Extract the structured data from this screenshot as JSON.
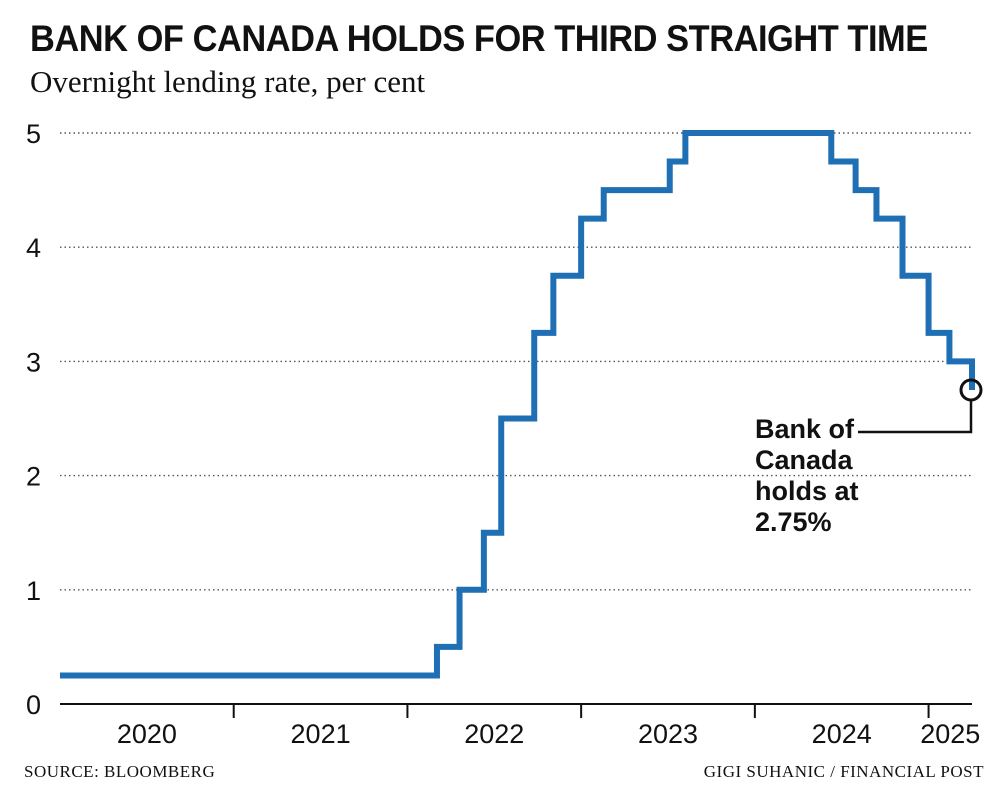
{
  "chart_data": {
    "type": "line",
    "step": true,
    "title": "BANK OF CANADA HOLDS FOR THIRD STRAIGHT TIME",
    "subtitle": "Overnight lending rate, per cent",
    "xlabel": "",
    "ylabel": "",
    "ylim": [
      0,
      5
    ],
    "xlim": [
      2020.0,
      2025.25
    ],
    "y_ticks": [
      "0",
      "1",
      "2",
      "3",
      "4",
      "5"
    ],
    "x_ticks": [
      "2020",
      "2021",
      "2022",
      "2023",
      "2024",
      "2025"
    ],
    "grid": true,
    "series": [
      {
        "name": "Overnight lending rate",
        "color": "#1f6fb5",
        "points": [
          {
            "x": 2020.0,
            "y": 0.25
          },
          {
            "x": 2022.17,
            "y": 0.5
          },
          {
            "x": 2022.3,
            "y": 1.0
          },
          {
            "x": 2022.44,
            "y": 1.5
          },
          {
            "x": 2022.54,
            "y": 2.5
          },
          {
            "x": 2022.73,
            "y": 3.25
          },
          {
            "x": 2022.84,
            "y": 3.75
          },
          {
            "x": 2023.0,
            "y": 4.25
          },
          {
            "x": 2023.13,
            "y": 4.5
          },
          {
            "x": 2023.51,
            "y": 4.75
          },
          {
            "x": 2023.6,
            "y": 5.0
          },
          {
            "x": 2024.44,
            "y": 4.75
          },
          {
            "x": 2024.58,
            "y": 4.5
          },
          {
            "x": 2024.7,
            "y": 4.25
          },
          {
            "x": 2024.85,
            "y": 3.75
          },
          {
            "x": 2025.0,
            "y": 3.25
          },
          {
            "x": 2025.12,
            "y": 3.0
          },
          {
            "x": 2025.25,
            "y": 2.75
          }
        ]
      }
    ],
    "annotation": {
      "lines": [
        "Bank of",
        "Canada",
        "holds at",
        "2.75%"
      ],
      "x": 2025.25,
      "y": 2.75
    }
  },
  "source": "SOURCE: BLOOMBERG",
  "credit": "GIGI SUHANIC / FINANCIAL POST"
}
